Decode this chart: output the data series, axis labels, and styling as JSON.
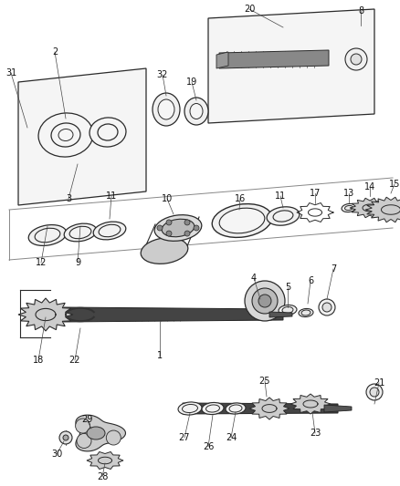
{
  "bg_color": "#ffffff",
  "line_color": "#2a2a2a",
  "gray_color": "#888888",
  "dark_color": "#1a1a1a",
  "fig_width": 4.38,
  "fig_height": 5.33,
  "dpi": 100,
  "xlim": [
    0,
    438
  ],
  "ylim": [
    0,
    533
  ]
}
